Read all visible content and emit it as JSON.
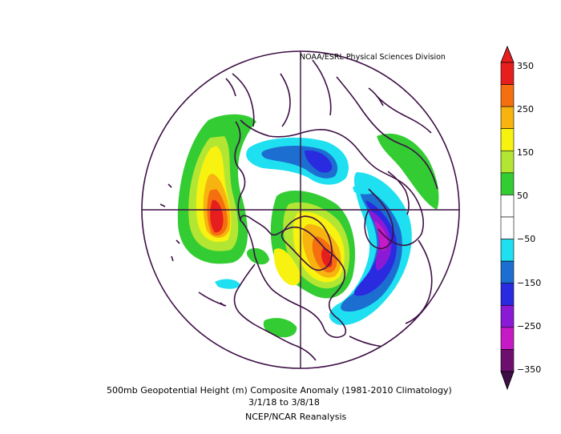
{
  "credit": "NOAA/ESRL Physical Sciences Division",
  "caption": {
    "title": "500mb Geopotential Height (m) Composite Anomaly (1981-2010 Climatology)",
    "dates": "3/1/18  to 3/8/18",
    "source": "NCEP/NCAR Reanalysis"
  },
  "colorbar": {
    "colors": [
      "#6d0f6d",
      "#c71ac7",
      "#8a1ad6",
      "#2a2ae0",
      "#1c6fd1",
      "#1fe0f0",
      "#ffffff",
      "#ffffff",
      "#33cc33",
      "#b3e633",
      "#f7f20f",
      "#f7b30f",
      "#f56e0f",
      "#e61e1e"
    ],
    "labels": [
      "350",
      "250",
      "150",
      "50",
      "−50",
      "−150",
      "−250",
      "−350"
    ]
  },
  "colors": {
    "land_outline": "#3d0f45",
    "frame": "#3d0f45"
  }
}
